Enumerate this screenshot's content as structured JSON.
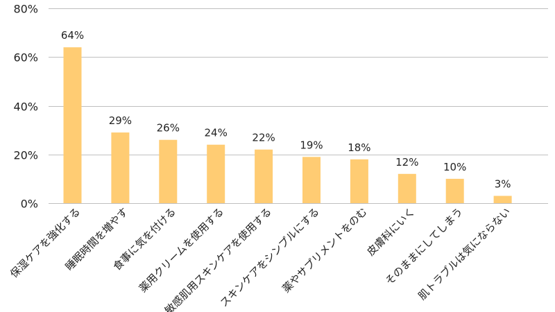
{
  "chart_data": {
    "type": "bar",
    "categories": [
      "保湿ケアを強化する",
      "睡眠時間を増やす",
      "食事に気を付ける",
      "薬用クリームを使用する",
      "敏感肌用スキンケアを使用する",
      "スキンケアをシンプルにする",
      "薬やサプリメントをのむ",
      "皮膚科にいく",
      "そのままにしてしまう",
      "肌トラブルは気にならない"
    ],
    "values": [
      64,
      29,
      26,
      24,
      22,
      19,
      18,
      12,
      10,
      3
    ],
    "data_labels": [
      "64%",
      "29%",
      "26%",
      "24%",
      "22%",
      "19%",
      "18%",
      "12%",
      "10%",
      "3%"
    ],
    "y_ticks": [
      0,
      20,
      40,
      60,
      80
    ],
    "y_tick_labels": [
      "0%",
      "20%",
      "40%",
      "60%",
      "80%"
    ],
    "ylim": [
      0,
      80
    ],
    "title": "",
    "xlabel": "",
    "ylabel": "",
    "grid": true,
    "bar_color": "#FFCC73",
    "grid_color": "#BFBFBF"
  }
}
